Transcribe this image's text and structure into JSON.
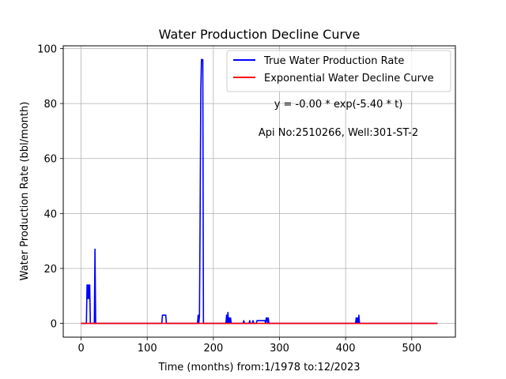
{
  "chart_data": {
    "type": "line",
    "title": "Water Production Decline Curve",
    "xlabel": "Time (months) from:1/1978 to:12/2023",
    "ylabel": "Water Production Rate (bbl/month)",
    "xlim": [
      -27,
      566
    ],
    "ylim": [
      -5,
      101
    ],
    "xticks": [
      0,
      100,
      200,
      300,
      400,
      500
    ],
    "yticks": [
      0,
      20,
      40,
      60,
      80,
      100
    ],
    "grid": true,
    "legend_position": "top-right",
    "annotations": {
      "equation": "y = -0.00 * exp(-5.40 * t)",
      "well": "Api No:2510266, Well:301-ST-2"
    },
    "series": [
      {
        "name": "True Water Production Rate",
        "color": "#0000ff",
        "x": [
          0,
          8,
          9,
          10,
          11,
          12,
          13,
          14,
          15,
          16,
          17,
          18,
          19,
          20,
          21,
          22,
          23,
          24,
          122,
          123,
          124,
          128,
          129,
          176,
          177,
          178,
          179,
          180,
          181,
          182,
          183,
          184,
          185,
          186,
          187,
          219,
          220,
          221,
          222,
          223,
          224,
          225,
          226,
          227,
          245,
          246,
          247,
          254,
          255,
          256,
          259,
          260,
          261,
          265,
          266,
          267,
          278,
          279,
          280,
          281,
          282,
          283,
          284,
          285,
          415,
          416,
          417,
          418,
          419,
          420,
          421,
          422,
          539
        ],
        "y": [
          0,
          0,
          14,
          9,
          14,
          9,
          14,
          0,
          0,
          0,
          0,
          0,
          0,
          0,
          27,
          0,
          0,
          0,
          0,
          3,
          3,
          3,
          0,
          0,
          3,
          0,
          3,
          40,
          85,
          96,
          96,
          96,
          0,
          0,
          0,
          0,
          3,
          0,
          4,
          0,
          2,
          0,
          2,
          0,
          0,
          1,
          0,
          0,
          1,
          0,
          0,
          1,
          0,
          0,
          1,
          1,
          1,
          0,
          2,
          2,
          0,
          2,
          0,
          0,
          0,
          2,
          0,
          2,
          0,
          3,
          0,
          0,
          0
        ]
      },
      {
        "name": "Exponential Water Decline Curve",
        "color": "#ff0000",
        "x": [
          0,
          539
        ],
        "y": [
          0,
          0
        ]
      }
    ]
  }
}
